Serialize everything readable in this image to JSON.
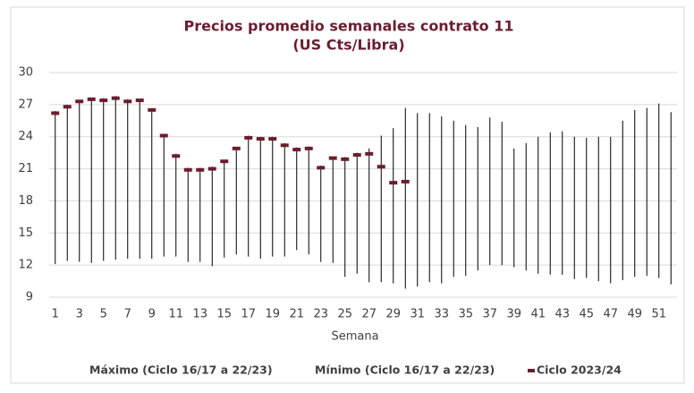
{
  "chart_data": {
    "type": "hilo",
    "title": "Precios promedio semanales contrato 11",
    "subtitle": "(US Cts/Libra)",
    "x_label": "Semana",
    "categories": [
      1,
      null,
      3,
      null,
      5,
      null,
      7,
      null,
      9,
      null,
      11,
      null,
      13,
      null,
      15,
      null,
      17,
      null,
      19,
      null,
      21,
      null,
      23,
      null,
      25,
      null,
      27,
      null,
      29,
      null,
      31,
      null,
      33,
      null,
      35,
      null,
      37,
      null,
      39,
      null,
      41,
      null,
      43,
      null,
      45,
      null,
      47,
      null,
      49,
      null,
      51,
      null
    ],
    "ylim": [
      9,
      30
    ],
    "yticks": [
      9,
      12,
      15,
      18,
      21,
      24,
      27,
      30
    ],
    "grid": true,
    "series": [
      {
        "name": "Máximo (Ciclo 16/17 a 22/23)",
        "color": "#000000",
        "values": [
          26.4,
          27.0,
          27.4,
          27.6,
          27.6,
          27.8,
          27.5,
          27.5,
          26.6,
          24.2,
          22.4,
          21.1,
          21.1,
          21.2,
          21.8,
          23.0,
          24.1,
          24.0,
          24.0,
          23.4,
          23.0,
          23.1,
          21.3,
          22.1,
          22.1,
          22.5,
          22.9,
          24.1,
          24.8,
          26.7,
          26.2,
          26.2,
          25.9,
          25.5,
          25.1,
          24.9,
          25.8,
          25.4,
          22.9,
          23.4,
          24.0,
          24.4,
          24.5,
          24.0,
          23.9,
          24.0,
          24.0,
          25.5,
          26.5,
          26.7,
          27.1,
          26.3
        ]
      },
      {
        "name": "Mínimo (Ciclo 16/17 a 22/23)",
        "color": "#000000",
        "values": [
          12.1,
          12.4,
          12.3,
          12.2,
          12.4,
          12.5,
          12.6,
          12.6,
          12.6,
          12.8,
          12.8,
          12.3,
          12.3,
          11.9,
          12.7,
          13.0,
          12.8,
          12.6,
          12.8,
          12.8,
          13.4,
          13.0,
          12.3,
          12.2,
          10.9,
          11.2,
          10.4,
          10.4,
          10.3,
          9.8,
          10.0,
          10.4,
          10.3,
          10.9,
          11.0,
          11.5,
          12.0,
          12.0,
          11.8,
          11.5,
          11.2,
          11.1,
          11.1,
          10.7,
          10.8,
          10.5,
          10.3,
          10.6,
          10.9,
          11.0,
          10.8,
          10.2
        ]
      },
      {
        "name": "Ciclo 2023/24",
        "color": "#6b1d2e",
        "values": [
          26.2,
          26.8,
          27.3,
          27.5,
          27.4,
          27.6,
          27.3,
          27.4,
          26.5,
          24.1,
          22.2,
          20.9,
          20.9,
          21.0,
          21.7,
          22.9,
          23.9,
          23.8,
          23.8,
          23.2,
          22.8,
          22.9,
          21.1,
          22.0,
          21.9,
          22.3,
          22.4,
          21.2,
          19.7,
          19.8,
          null,
          null,
          null,
          null,
          null,
          null,
          null,
          null,
          null,
          null,
          null,
          null,
          null,
          null,
          null,
          null,
          null,
          null,
          null,
          null,
          null,
          null
        ]
      }
    ]
  }
}
